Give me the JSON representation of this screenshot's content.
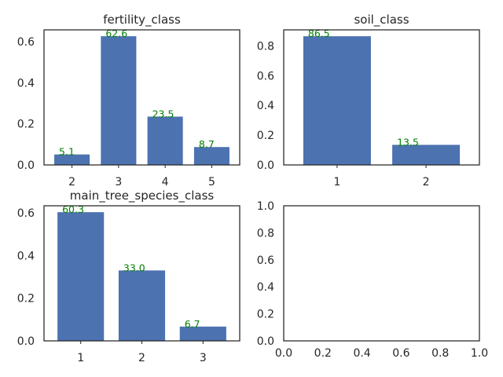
{
  "chart_data": [
    {
      "type": "bar",
      "title": "fertility_class",
      "categories": [
        "2",
        "3",
        "4",
        "5"
      ],
      "values": [
        0.051,
        0.626,
        0.235,
        0.087
      ],
      "data_labels": [
        "5.1",
        "62.6",
        "23.5",
        "8.7"
      ],
      "yticks": [
        "0.0",
        "0.2",
        "0.4",
        "0.6"
      ],
      "ylim": [
        0,
        0.657
      ],
      "grid": false,
      "bar_color": "#4c72b0",
      "label_color": "#008000"
    },
    {
      "type": "bar",
      "title": "soil_class",
      "categories": [
        "1",
        "2"
      ],
      "values": [
        0.865,
        0.135
      ],
      "data_labels": [
        "86.5",
        "13.5"
      ],
      "yticks": [
        "0.0",
        "0.2",
        "0.4",
        "0.6",
        "0.8"
      ],
      "ylim": [
        0,
        0.908
      ],
      "grid": false,
      "bar_color": "#4c72b0",
      "label_color": "#008000"
    },
    {
      "type": "bar",
      "title": "main_tree_species_class",
      "categories": [
        "1",
        "2",
        "3"
      ],
      "values": [
        0.603,
        0.33,
        0.067
      ],
      "data_labels": [
        "60.3",
        "33.0",
        "6.7"
      ],
      "yticks": [
        "0.0",
        "0.2",
        "0.4",
        "0.6"
      ],
      "ylim": [
        0,
        0.633
      ],
      "grid": false,
      "bar_color": "#4c72b0",
      "label_color": "#008000"
    },
    {
      "type": "empty",
      "title": "",
      "xticks": [
        "0.0",
        "0.2",
        "0.4",
        "0.6",
        "0.8",
        "1.0"
      ],
      "yticks": [
        "0.0",
        "0.2",
        "0.4",
        "0.6",
        "0.8",
        "1.0"
      ],
      "xlim": [
        0,
        1
      ],
      "ylim": [
        0,
        1
      ],
      "grid": false
    }
  ]
}
